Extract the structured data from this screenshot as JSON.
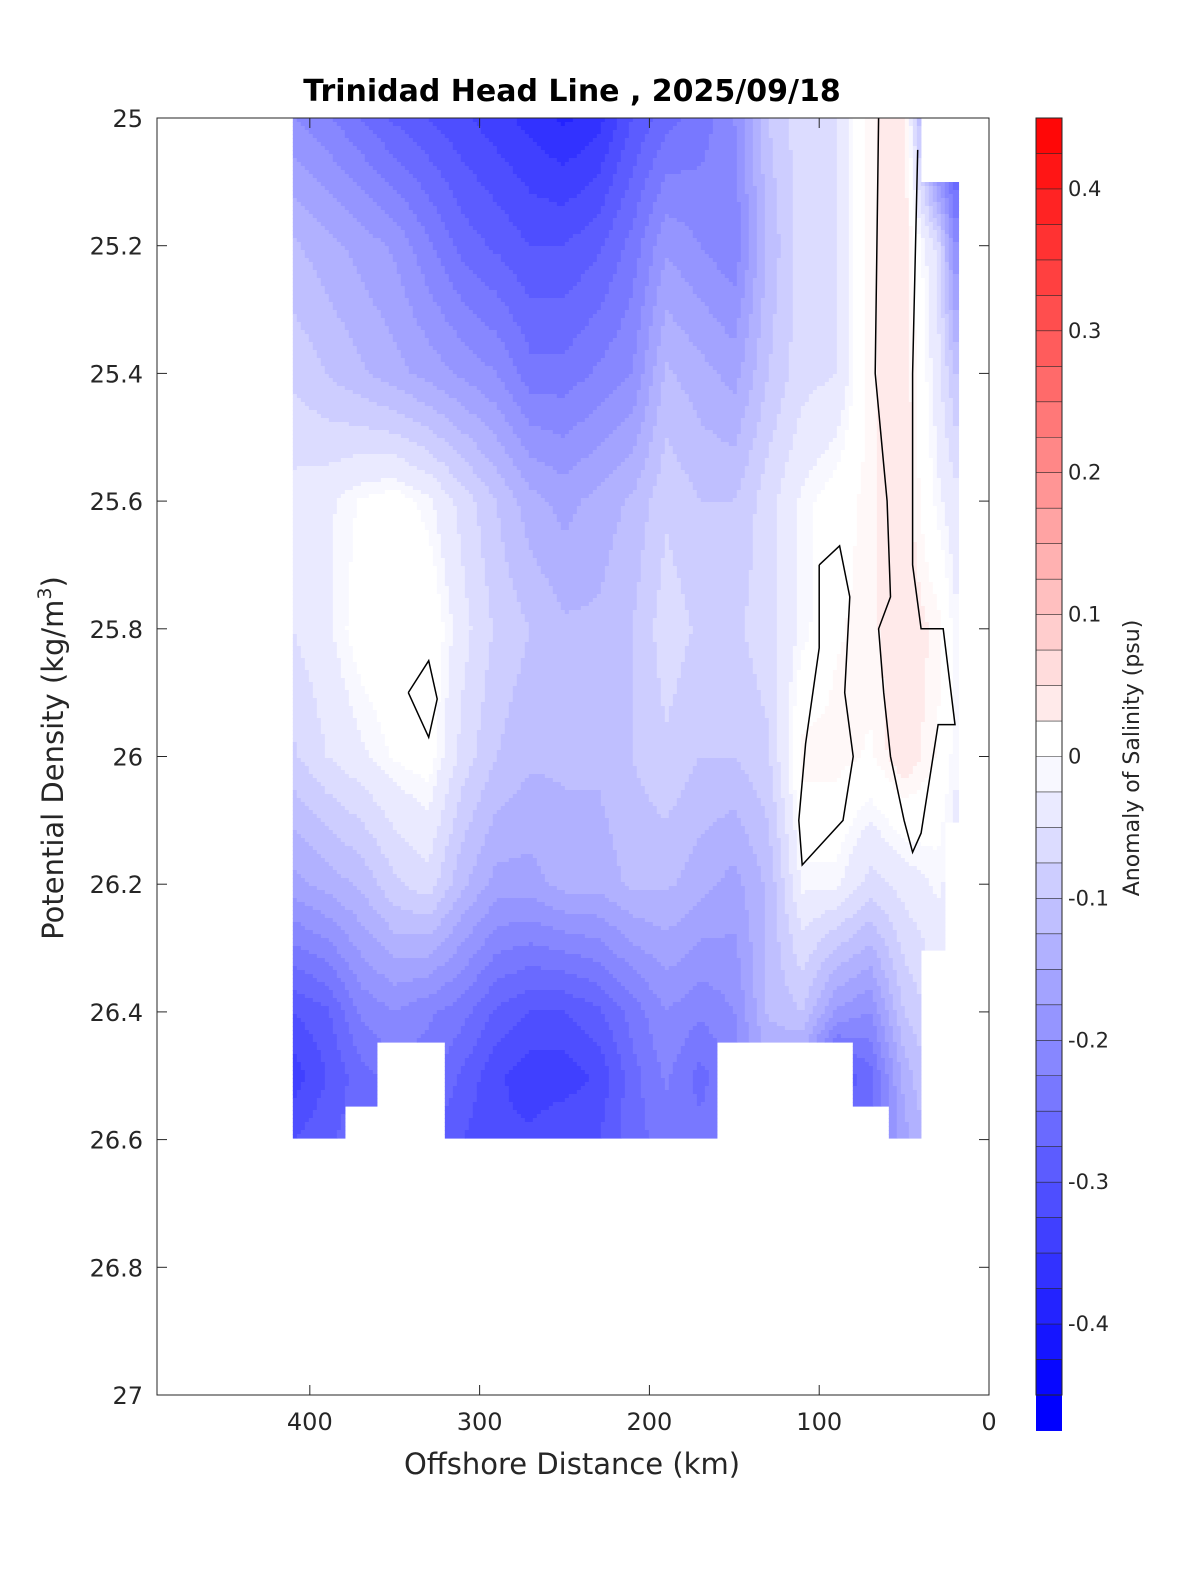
{
  "chart_data": {
    "type": "heatmap",
    "title": "Trinidad Head Line , 2025/09/18",
    "xlabel": "Offshore Distance (km)",
    "ylabel": "Potential Density (kg/m",
    "ylabel_sup": "3",
    "ylabel_close": ")",
    "colorbar_label": "Anomaly of Salinity (psu)",
    "x_reversed": true,
    "xlim": [
      490,
      0
    ],
    "ylim": [
      25,
      27
    ],
    "y_reversed": true,
    "xticks": [
      400,
      300,
      200,
      100,
      0
    ],
    "xtick_labels": [
      "400",
      "300",
      "200",
      "100",
      "0"
    ],
    "yticks": [
      25,
      25.2,
      25.4,
      25.6,
      25.8,
      26,
      26.2,
      26.4,
      26.6,
      26.8,
      27
    ],
    "ytick_labels": [
      "25",
      "25.2",
      "25.4",
      "25.6",
      "25.8",
      "26",
      "26.2",
      "26.4",
      "26.6",
      "26.8",
      "27"
    ],
    "colorbar_range": [
      -0.45,
      0.45
    ],
    "colorbar_ticks": [
      0.4,
      0.3,
      0.2,
      0.1,
      0,
      -0.1,
      -0.2,
      -0.3,
      -0.4
    ],
    "colorbar_tick_labels": [
      "0.4",
      "0.3",
      "0.2",
      "0.1",
      "0",
      "-0.1",
      "-0.2",
      "-0.3",
      "-0.4"
    ],
    "colormap": {
      "negative": "#0000ff",
      "zero": "#ffffff",
      "positive": "#ff0000"
    },
    "contour_level": 0,
    "contour_color": "#000000",
    "data_columns_km": [
      410,
      390,
      370,
      350,
      330,
      310,
      290,
      270,
      250,
      230,
      210,
      190,
      170,
      150,
      130,
      110,
      90,
      70,
      50,
      30,
      20
    ],
    "data_rows_density": [
      25.0,
      25.2,
      25.4,
      25.6,
      25.8,
      26.0,
      26.2,
      26.4,
      26.5,
      26.6
    ],
    "anomaly_values": [
      [
        -0.2,
        -0.22,
        -0.25,
        -0.28,
        -0.3,
        -0.32,
        -0.34,
        -0.36,
        -0.38,
        -0.36,
        -0.3,
        -0.26,
        -0.24,
        -0.2,
        -0.1,
        -0.06,
        -0.05,
        0.02,
        0.04,
        -0.3,
        -0.32
      ],
      [
        -0.12,
        -0.14,
        -0.16,
        -0.18,
        -0.22,
        -0.26,
        -0.28,
        -0.3,
        -0.3,
        -0.28,
        -0.24,
        -0.18,
        -0.2,
        -0.22,
        -0.12,
        -0.06,
        -0.05,
        0.02,
        0.04,
        -0.06,
        -0.2
      ],
      [
        -0.08,
        -0.1,
        -0.12,
        -0.14,
        -0.16,
        -0.18,
        -0.2,
        -0.24,
        -0.24,
        -0.22,
        -0.2,
        -0.12,
        -0.14,
        -0.16,
        -0.1,
        -0.06,
        -0.05,
        0.02,
        0.04,
        -0.04,
        -0.1
      ],
      [
        -0.04,
        -0.03,
        -0.01,
        0.0,
        -0.02,
        -0.06,
        -0.1,
        -0.14,
        -0.16,
        -0.14,
        -0.12,
        -0.08,
        -0.1,
        -0.1,
        -0.06,
        -0.02,
        0.0,
        0.02,
        0.04,
        -0.02,
        -0.04
      ],
      [
        -0.05,
        -0.03,
        0.0,
        0.01,
        0.01,
        -0.04,
        -0.08,
        -0.1,
        -0.12,
        -0.12,
        -0.1,
        -0.06,
        -0.08,
        -0.08,
        -0.06,
        -0.02,
        0.01,
        0.02,
        0.04,
        0.02,
        -0.02
      ],
      [
        -0.08,
        -0.05,
        -0.03,
        -0.01,
        0.0,
        -0.06,
        -0.1,
        -0.12,
        -0.12,
        -0.12,
        -0.1,
        -0.08,
        -0.1,
        -0.1,
        -0.08,
        0.02,
        0.02,
        0.01,
        0.04,
        0.01,
        -0.02
      ],
      [
        -0.16,
        -0.14,
        -0.12,
        -0.08,
        -0.06,
        -0.12,
        -0.16,
        -0.16,
        -0.14,
        -0.14,
        -0.12,
        -0.12,
        -0.14,
        -0.16,
        -0.12,
        -0.02,
        -0.02,
        -0.06,
        -0.04,
        -0.02,
        -0.04
      ],
      [
        -0.3,
        -0.28,
        -0.22,
        -0.2,
        -0.22,
        -0.24,
        -0.28,
        -0.3,
        -0.3,
        -0.28,
        -0.24,
        -0.2,
        -0.22,
        -0.2,
        -0.12,
        -0.1,
        -0.18,
        -0.2,
        -0.1,
        -0.06,
        -0.06
      ],
      [
        -0.34,
        -0.3,
        -0.26,
        -0.24,
        -0.24,
        -0.28,
        -0.32,
        -0.34,
        -0.34,
        -0.32,
        -0.26,
        -0.22,
        -0.26,
        -0.22,
        -0.16,
        -0.18,
        -0.3,
        -0.26,
        -0.14,
        -0.08,
        -0.08
      ],
      [
        -0.3,
        -0.28,
        -0.26,
        -0.26,
        -0.28,
        -0.3,
        -0.32,
        -0.32,
        -0.3,
        -0.3,
        -0.26,
        -0.24,
        -0.24,
        -0.22,
        -0.18,
        -0.2,
        -0.26,
        -0.26,
        -0.16,
        -0.1,
        -0.1
      ]
    ],
    "valid_mask": [
      [
        1,
        1,
        1,
        1,
        1,
        1,
        1,
        1,
        1,
        1,
        1,
        1,
        1,
        1,
        1,
        1,
        1,
        1,
        1,
        0,
        0
      ],
      [
        1,
        1,
        1,
        1,
        1,
        1,
        1,
        1,
        1,
        1,
        1,
        1,
        1,
        1,
        1,
        1,
        1,
        1,
        1,
        1,
        1
      ],
      [
        1,
        1,
        1,
        1,
        1,
        1,
        1,
        1,
        1,
        1,
        1,
        1,
        1,
        1,
        1,
        1,
        1,
        1,
        1,
        1,
        1
      ],
      [
        1,
        1,
        1,
        1,
        1,
        1,
        1,
        1,
        1,
        1,
        1,
        1,
        1,
        1,
        1,
        1,
        1,
        1,
        1,
        1,
        1
      ],
      [
        1,
        1,
        1,
        1,
        1,
        1,
        1,
        1,
        1,
        1,
        1,
        1,
        1,
        1,
        1,
        1,
        1,
        1,
        1,
        1,
        1
      ],
      [
        1,
        1,
        1,
        1,
        1,
        1,
        1,
        1,
        1,
        1,
        1,
        1,
        1,
        1,
        1,
        1,
        1,
        1,
        1,
        1,
        1
      ],
      [
        1,
        1,
        1,
        1,
        1,
        1,
        1,
        1,
        1,
        1,
        1,
        1,
        1,
        1,
        1,
        1,
        1,
        1,
        1,
        1,
        0
      ],
      [
        1,
        1,
        1,
        1,
        1,
        1,
        1,
        1,
        1,
        1,
        1,
        1,
        1,
        1,
        1,
        1,
        1,
        1,
        1,
        0,
        0
      ],
      [
        1,
        1,
        1,
        0,
        0,
        1,
        1,
        1,
        1,
        1,
        1,
        1,
        1,
        0,
        0,
        0,
        0,
        1,
        1,
        0,
        0
      ],
      [
        1,
        1,
        0,
        0,
        0,
        1,
        1,
        1,
        1,
        1,
        1,
        1,
        1,
        0,
        0,
        0,
        0,
        0,
        1,
        0,
        0
      ]
    ],
    "zero_contours": [
      {
        "name": "offshore-island",
        "points": [
          [
            342,
            25.9
          ],
          [
            330,
            25.85
          ],
          [
            325,
            25.91
          ],
          [
            330,
            25.97
          ],
          [
            342,
            25.9
          ]
        ]
      },
      {
        "name": "nearshore-eddy",
        "points": [
          [
            100,
            25.7
          ],
          [
            88,
            25.67
          ],
          [
            82,
            25.75
          ],
          [
            85,
            25.9
          ],
          [
            80,
            26.0
          ],
          [
            86,
            26.1
          ],
          [
            110,
            26.17
          ],
          [
            112,
            26.1
          ],
          [
            108,
            25.98
          ],
          [
            100,
            25.83
          ],
          [
            100,
            25.7
          ]
        ]
      },
      {
        "name": "inner-band",
        "points": [
          [
            65,
            25.0
          ],
          [
            67,
            25.4
          ],
          [
            60,
            25.6
          ],
          [
            58,
            25.75
          ],
          [
            65,
            25.8
          ],
          [
            62,
            25.9
          ],
          [
            58,
            26.0
          ],
          [
            50,
            26.1
          ],
          [
            45,
            26.15
          ],
          [
            40,
            26.12
          ],
          [
            30,
            25.95
          ],
          [
            20,
            25.95
          ],
          [
            27,
            25.8
          ],
          [
            40,
            25.8
          ],
          [
            45,
            25.7
          ],
          [
            45,
            25.4
          ],
          [
            42,
            25.05
          ]
        ]
      }
    ]
  }
}
